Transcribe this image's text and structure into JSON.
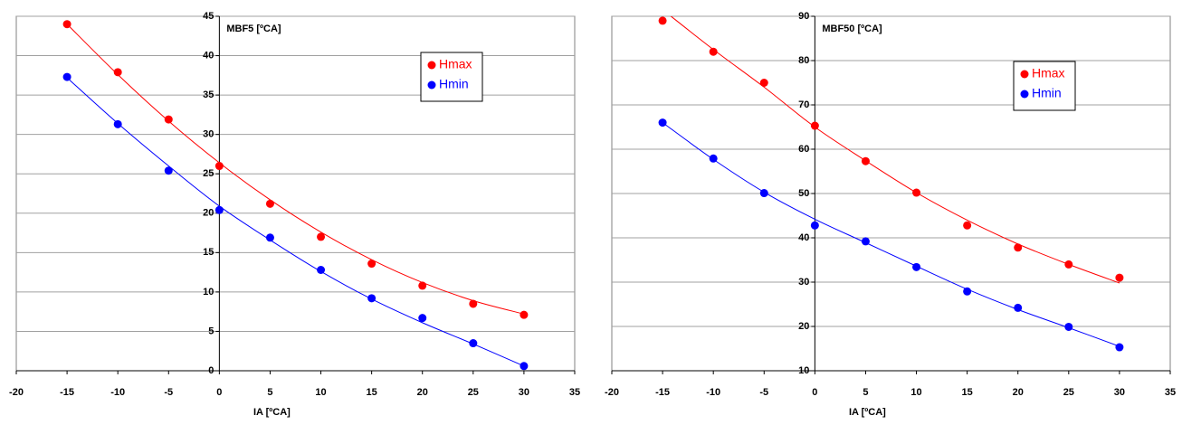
{
  "chart_data": [
    {
      "type": "scatter",
      "annotation": "MBF5 [ºCA]",
      "x_label": "IA [ºCA]",
      "x": [
        -15,
        -10,
        -5,
        0,
        5,
        10,
        15,
        20,
        25,
        30
      ],
      "series": [
        {
          "name": "Hmax",
          "color": "#ff0000",
          "values": [
            44,
            37.9,
            31.9,
            26,
            21.2,
            17,
            13.6,
            10.8,
            8.5,
            7.1
          ],
          "trend": [
            44,
            37.6,
            31.7,
            26.4,
            21.7,
            17.6,
            14.1,
            11.2,
            8.9,
            7.2
          ]
        },
        {
          "name": "Hmin",
          "color": "#0000ff",
          "values": [
            37.3,
            31.3,
            25.4,
            20.4,
            16.9,
            12.8,
            9.2,
            6.7,
            3.5,
            0.6
          ],
          "trend": [
            37.2,
            31.4,
            26,
            20.9,
            16.6,
            12.6,
            9.1,
            6.1,
            3.4,
            0.6
          ]
        }
      ],
      "xlim": [
        -20,
        35
      ],
      "xticks": [
        -20,
        -15,
        -10,
        -5,
        0,
        5,
        10,
        15,
        20,
        25,
        30,
        35
      ],
      "ylim": [
        0,
        45
      ],
      "yticks": [
        0,
        5,
        10,
        15,
        20,
        25,
        30,
        35,
        40,
        45
      ],
      "grid": true
    },
    {
      "type": "scatter",
      "annotation": "MBF50 [ºCA]",
      "x_label": "IA [ºCA]",
      "x": [
        -15,
        -10,
        -5,
        0,
        5,
        10,
        15,
        20,
        25,
        30
      ],
      "series": [
        {
          "name": "Hmax",
          "color": "#ff0000",
          "values": [
            89,
            82,
            75,
            65.3,
            57.3,
            50.2,
            42.8,
            37.8,
            34,
            31
          ],
          "trend": [
            91.5,
            82.5,
            74,
            65,
            57.4,
            50.2,
            44,
            38.6,
            34,
            29.8
          ]
        },
        {
          "name": "Hmin",
          "color": "#0000ff",
          "values": [
            66,
            57.9,
            50.1,
            42.8,
            39.2,
            33.4,
            27.9,
            24.2,
            19.9,
            15.3
          ],
          "trend": [
            66,
            57.7,
            50.3,
            44.2,
            38.9,
            33.6,
            28.4,
            23.8,
            19.7,
            15.5
          ]
        }
      ],
      "xlim": [
        -20,
        35
      ],
      "xticks": [
        -20,
        -15,
        -10,
        -5,
        0,
        5,
        10,
        15,
        20,
        25,
        30,
        35
      ],
      "ylim": [
        10,
        90
      ],
      "yticks": [
        10,
        20,
        30,
        40,
        50,
        60,
        70,
        80,
        90
      ],
      "grid": true
    }
  ]
}
